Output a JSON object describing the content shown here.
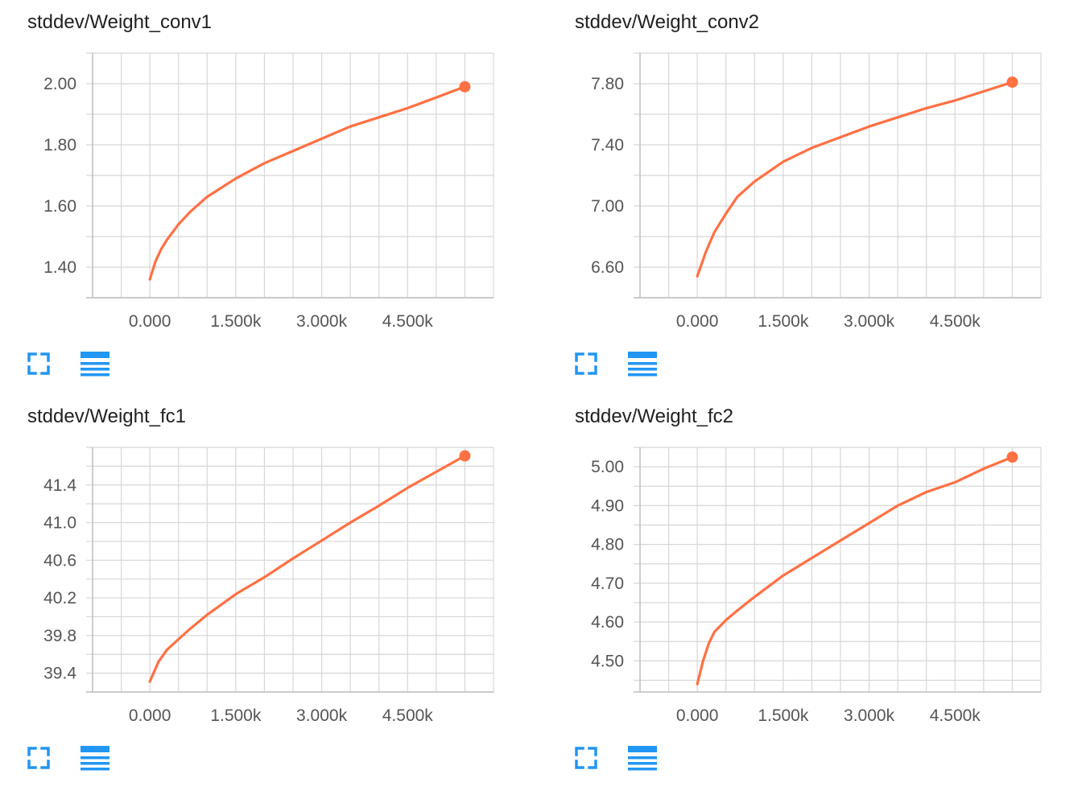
{
  "accent": "#ff7043",
  "icon_color": "#2196f3",
  "cards": [
    {
      "title": "stddev/Weight_conv1",
      "expand_icon": "fullscreen-icon",
      "data_icon": "list-icon",
      "chart_data": {
        "type": "line",
        "title": "stddev/Weight_conv1",
        "xlabel": "",
        "ylabel": "",
        "xlim": [
          -1000,
          6000
        ],
        "ylim": [
          1.3,
          2.1
        ],
        "x_ticks": [
          0,
          1500,
          3000,
          4500
        ],
        "x_tick_labels": [
          "0.000",
          "1.500k",
          "3.000k",
          "4.500k"
        ],
        "y_ticks": [
          1.4,
          1.6,
          1.8,
          2.0
        ],
        "y_tick_labels": [
          "1.40",
          "1.60",
          "1.80",
          "2.00"
        ],
        "grid": true,
        "series": [
          {
            "color": "#ff7043",
            "x": [
              0,
              100,
              200,
              300,
              500,
              700,
              1000,
              1500,
              2000,
              2500,
              3000,
              3500,
              4000,
              4500,
              5000,
              5500
            ],
            "y": [
              1.36,
              1.42,
              1.46,
              1.49,
              1.54,
              1.58,
              1.63,
              1.69,
              1.74,
              1.78,
              1.82,
              1.86,
              1.89,
              1.92,
              1.955,
              1.99
            ]
          }
        ]
      }
    },
    {
      "title": "stddev/Weight_conv2",
      "expand_icon": "fullscreen-icon",
      "data_icon": "list-icon",
      "chart_data": {
        "type": "line",
        "title": "stddev/Weight_conv2",
        "xlabel": "",
        "ylabel": "",
        "xlim": [
          -1000,
          6000
        ],
        "ylim": [
          6.4,
          8.0
        ],
        "x_ticks": [
          0,
          1500,
          3000,
          4500
        ],
        "x_tick_labels": [
          "0.000",
          "1.500k",
          "3.000k",
          "4.500k"
        ],
        "y_ticks": [
          6.6,
          7.0,
          7.4,
          7.8
        ],
        "y_tick_labels": [
          "6.60",
          "7.00",
          "7.40",
          "7.80"
        ],
        "grid": true,
        "series": [
          {
            "color": "#ff7043",
            "x": [
              0,
              150,
              300,
              500,
              700,
              1000,
              1500,
              2000,
              2500,
              3000,
              3500,
              4000,
              4500,
              5000,
              5500
            ],
            "y": [
              6.54,
              6.7,
              6.83,
              6.95,
              7.06,
              7.16,
              7.29,
              7.38,
              7.45,
              7.52,
              7.58,
              7.64,
              7.69,
              7.75,
              7.81
            ]
          }
        ]
      }
    },
    {
      "title": "stddev/Weight_fc1",
      "expand_icon": "fullscreen-icon",
      "data_icon": "list-icon",
      "chart_data": {
        "type": "line",
        "title": "stddev/Weight_fc1",
        "xlabel": "",
        "ylabel": "",
        "xlim": [
          -1000,
          6000
        ],
        "ylim": [
          39.2,
          41.8
        ],
        "x_ticks": [
          0,
          1500,
          3000,
          4500
        ],
        "x_tick_labels": [
          "0.000",
          "1.500k",
          "3.000k",
          "4.500k"
        ],
        "y_ticks": [
          39.4,
          39.8,
          40.2,
          40.6,
          41.0,
          41.4
        ],
        "y_tick_labels": [
          "39.4",
          "39.8",
          "40.2",
          "40.6",
          "41.0",
          "41.4"
        ],
        "grid": true,
        "series": [
          {
            "color": "#ff7043",
            "x": [
              0,
              150,
              300,
              500,
              700,
              1000,
              1500,
              2000,
              2500,
              3000,
              3500,
              4000,
              4500,
              5000,
              5500
            ],
            "y": [
              39.31,
              39.52,
              39.65,
              39.76,
              39.87,
              40.02,
              40.24,
              40.42,
              40.62,
              40.81,
              41.0,
              41.18,
              41.37,
              41.54,
              41.71
            ]
          }
        ]
      }
    },
    {
      "title": "stddev/Weight_fc2",
      "expand_icon": "fullscreen-icon",
      "data_icon": "list-icon",
      "chart_data": {
        "type": "line",
        "title": "stddev/Weight_fc2",
        "xlabel": "",
        "ylabel": "",
        "xlim": [
          -1000,
          6000
        ],
        "ylim": [
          4.42,
          5.05
        ],
        "x_ticks": [
          0,
          1500,
          3000,
          4500
        ],
        "x_tick_labels": [
          "0.000",
          "1.500k",
          "3.000k",
          "4.500k"
        ],
        "y_ticks": [
          4.5,
          4.6,
          4.7,
          4.8,
          4.9,
          5.0
        ],
        "y_tick_labels": [
          "4.50",
          "4.60",
          "4.70",
          "4.80",
          "4.90",
          "5.00"
        ],
        "grid": true,
        "series": [
          {
            "color": "#ff7043",
            "x": [
              0,
              100,
              200,
              300,
              500,
              700,
              1000,
              1500,
              2000,
              2500,
              3000,
              3500,
              4000,
              4500,
              5000,
              5500
            ],
            "y": [
              4.44,
              4.5,
              4.545,
              4.575,
              4.605,
              4.63,
              4.665,
              4.72,
              4.765,
              4.81,
              4.855,
              4.9,
              4.935,
              4.96,
              4.995,
              5.025
            ]
          }
        ]
      }
    }
  ]
}
